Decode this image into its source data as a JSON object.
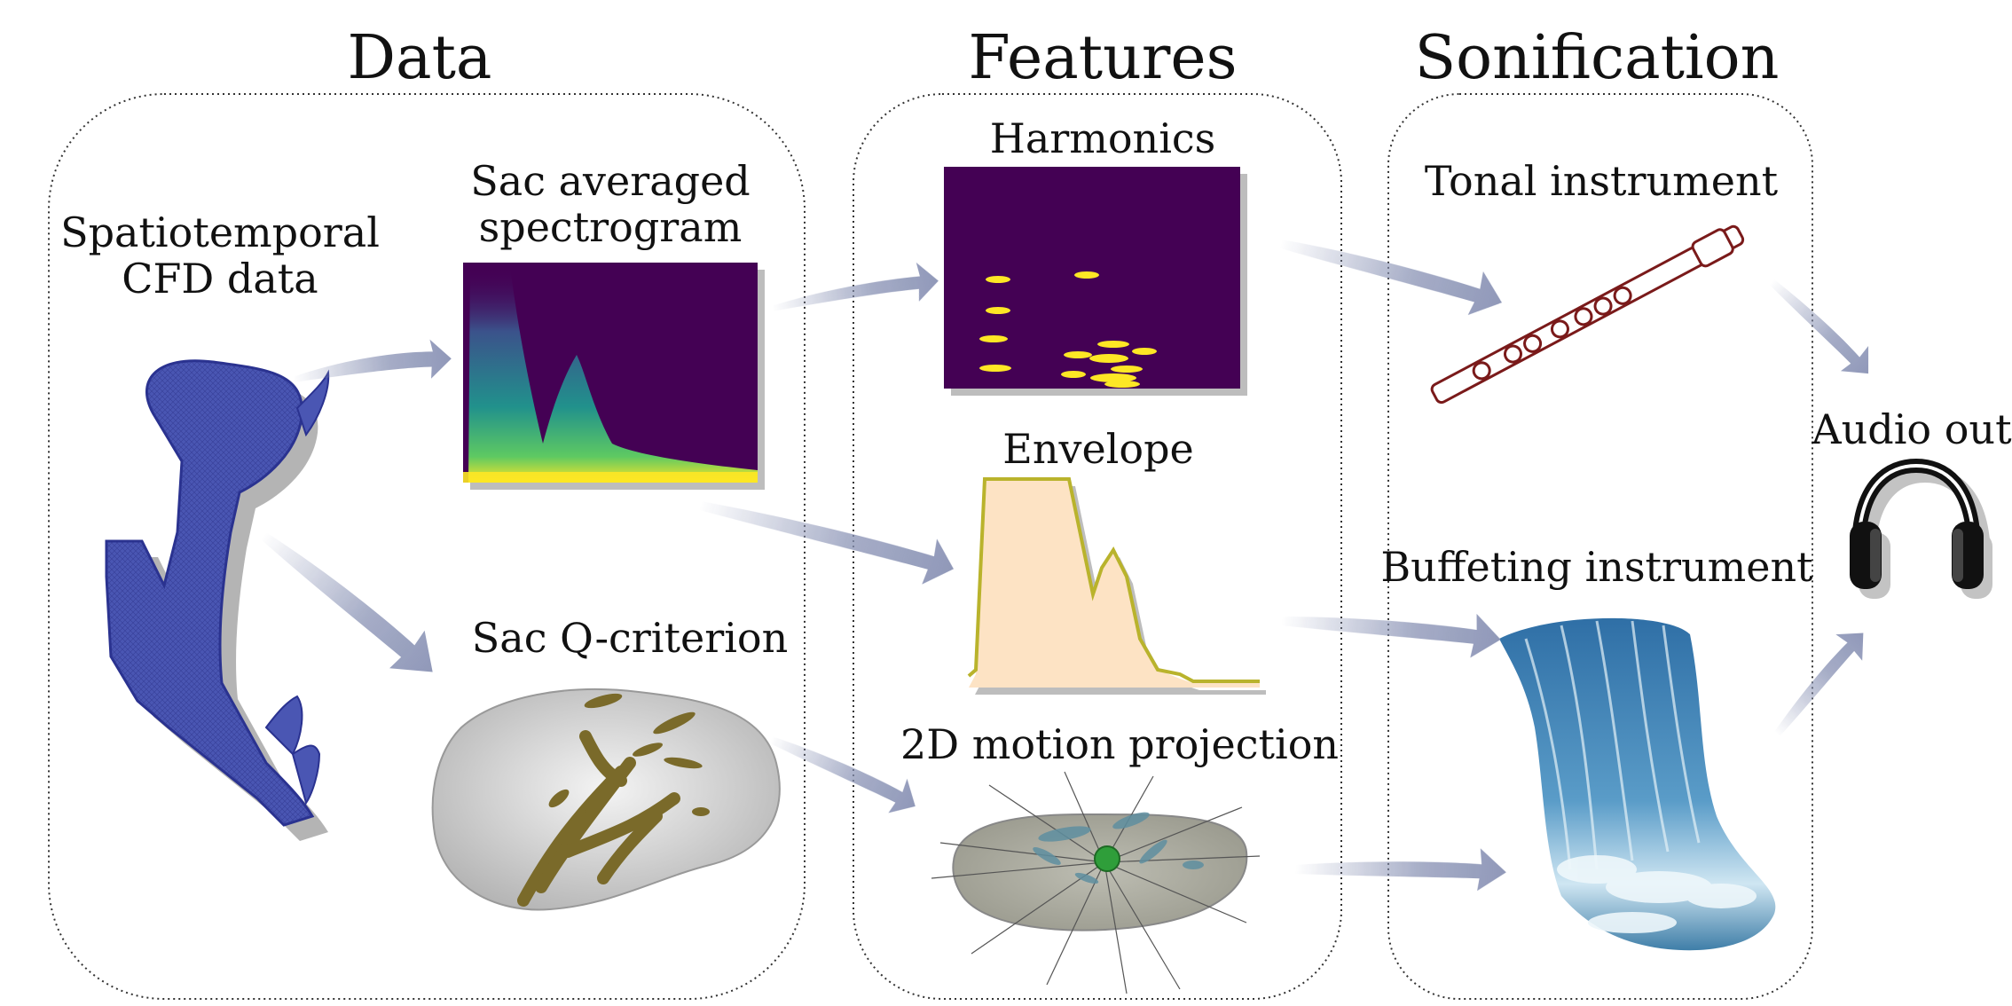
{
  "sections": {
    "data": "Data",
    "features": "Features",
    "sonification": "Sonification"
  },
  "labels": {
    "spatiotemporal_line1": "Spatiotemporal",
    "spatiotemporal_line2": "CFD data",
    "spectrogram_line1": "Sac averaged",
    "spectrogram_line2": "spectrogram",
    "q_criterion": "Sac Q-criterion",
    "harmonics": "Harmonics",
    "envelope": "Envelope",
    "motion_projection": "2D motion projection",
    "tonal_instrument": "Tonal instrument",
    "buffeting_instrument": "Buffeting instrument",
    "audio_out": "Audio out"
  },
  "icons": {
    "vessel": "vessel-mesh-icon",
    "flute": "flute-icon",
    "waterfall": "waterfall-icon",
    "headphones": "headphones-icon"
  },
  "colors": {
    "panel_border": "#333333",
    "arrow": "#8a93b5",
    "vessel": "#4a56b3",
    "spectrogram_bg": "#440154",
    "harmonic_dot": "#fde725",
    "envelope_fill": "#fde3c4",
    "envelope_line": "#b9b32c",
    "q_vortex": "#7a6a2a",
    "flute": "#7a1a1a",
    "water": "#4a86b8"
  }
}
